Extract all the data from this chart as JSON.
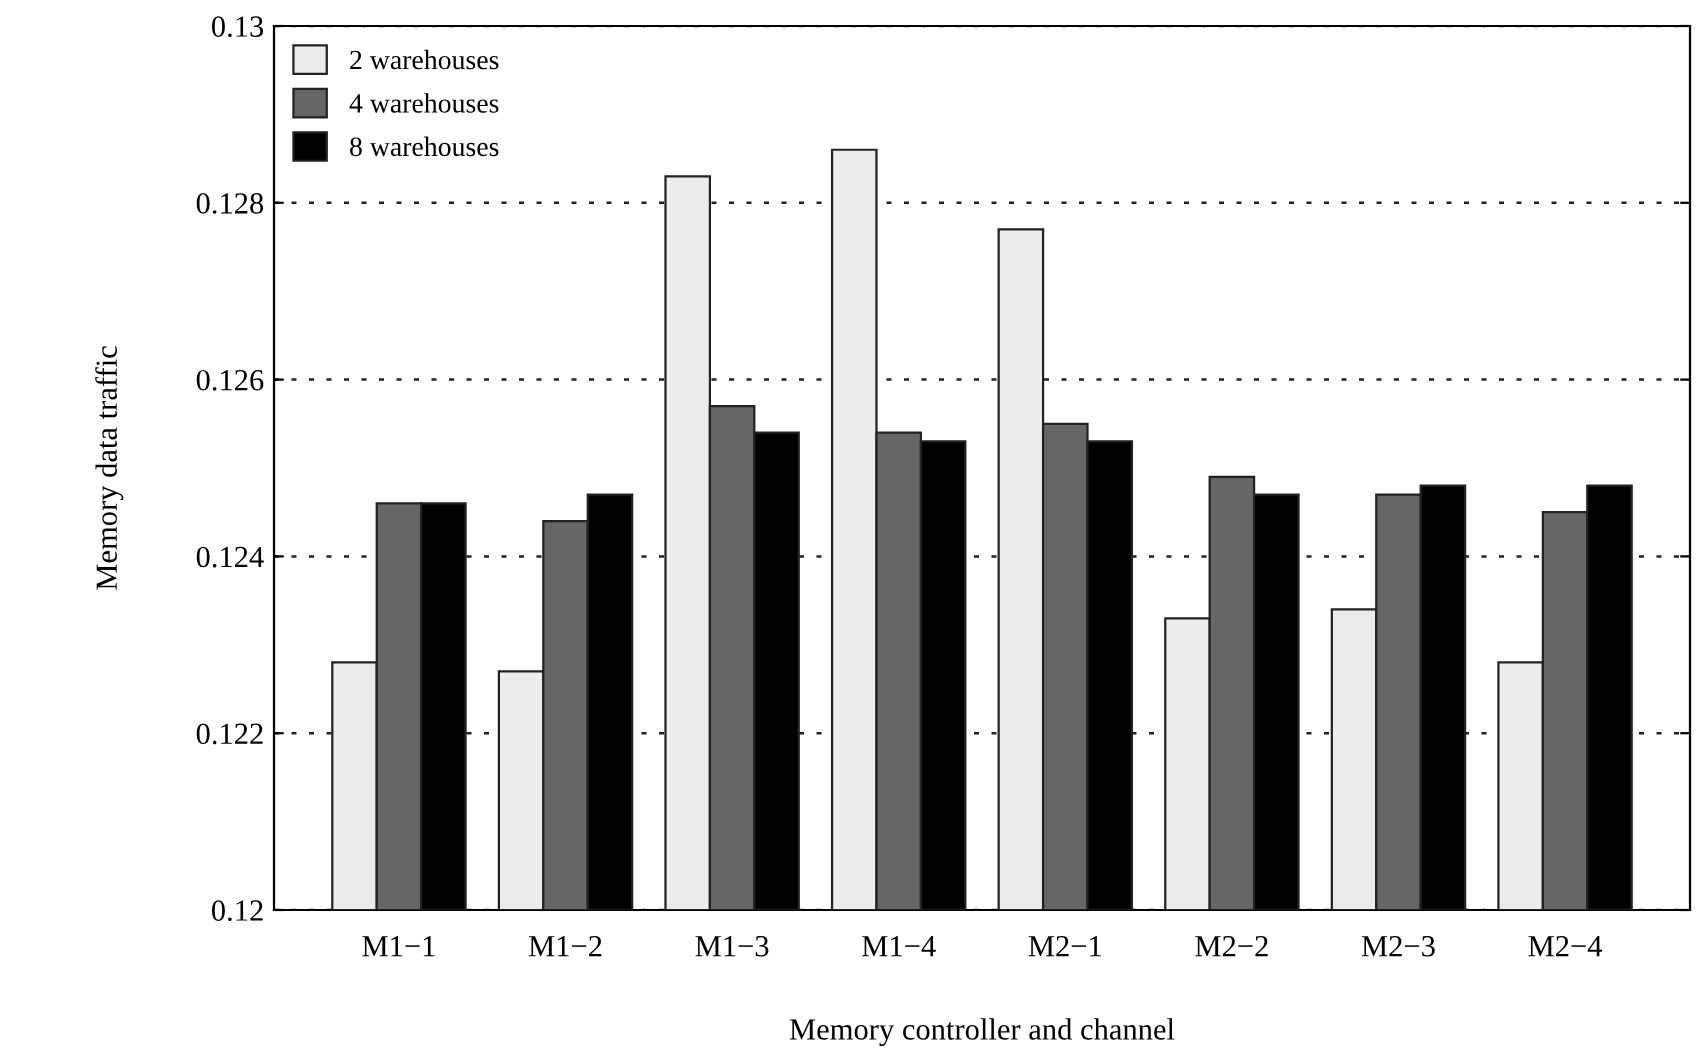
{
  "chart_data": {
    "type": "bar",
    "xlabel": "Memory controller and channel",
    "ylabel": "Memory data traffic",
    "categories": [
      "M1−1",
      "M1−2",
      "M1−3",
      "M1−4",
      "M2−1",
      "M2−2",
      "M2−3",
      "M2−4"
    ],
    "series": [
      {
        "name": "2 warehouses",
        "color": "#ececec",
        "values": [
          0.1228,
          0.1227,
          0.1283,
          0.1286,
          0.1277,
          0.1233,
          0.1234,
          0.1228
        ]
      },
      {
        "name": "4 warehouses",
        "color": "#666666",
        "values": [
          0.1246,
          0.1244,
          0.1257,
          0.1254,
          0.1255,
          0.1249,
          0.1247,
          0.1245
        ]
      },
      {
        "name": "8 warehouses",
        "color": "#000000",
        "values": [
          0.1246,
          0.1247,
          0.1254,
          0.1253,
          0.1253,
          0.1247,
          0.1248,
          0.1248
        ]
      }
    ],
    "ylim": [
      0.12,
      0.13
    ],
    "yticks": [
      {
        "value": 0.12,
        "label": "0.12"
      },
      {
        "value": 0.122,
        "label": "0.122"
      },
      {
        "value": 0.124,
        "label": "0.124"
      },
      {
        "value": 0.126,
        "label": "0.126"
      },
      {
        "value": 0.128,
        "label": "0.128"
      },
      {
        "value": 0.13,
        "label": "0.13"
      }
    ],
    "grid": "y",
    "legend": "top left"
  }
}
